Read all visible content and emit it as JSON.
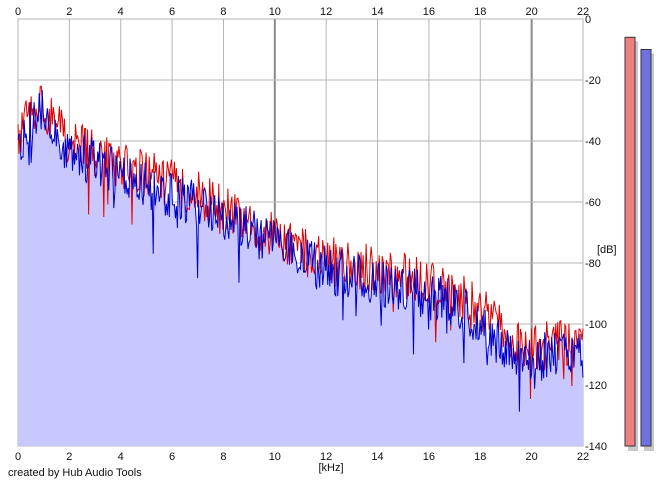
{
  "chart_data": {
    "type": "line",
    "title": "",
    "xlabel": "[kHz]",
    "ylabel": "[dB]",
    "xlim": [
      0,
      22
    ],
    "ylim": [
      -140,
      0
    ],
    "grid": true,
    "x_ticks": [
      "0",
      "2",
      "4",
      "6",
      "8",
      "10",
      "12",
      "14",
      "16",
      "18",
      "20",
      "22"
    ],
    "y_ticks": [
      "0",
      "-20",
      "-40",
      "-60",
      "-80",
      "-100",
      "-120",
      "-140"
    ],
    "series": [
      {
        "color": "#e00000",
        "x": [
          0,
          0.5,
          1,
          1.5,
          2,
          3,
          4,
          5,
          6,
          7,
          8,
          9,
          10,
          11,
          12,
          13,
          14,
          15,
          16,
          17,
          18,
          19,
          20,
          21,
          22
        ],
        "y": [
          -40,
          -31,
          -28,
          -35,
          -40,
          -44,
          -48,
          -51,
          -54,
          -57,
          -62,
          -67,
          -71,
          -76,
          -79,
          -81,
          -82,
          -84,
          -86,
          -89,
          -95,
          -104,
          -108,
          -106,
          -108
        ]
      },
      {
        "color": "#0000cc",
        "x": [
          0,
          0.5,
          1,
          1.5,
          2,
          3,
          4,
          5,
          6,
          7,
          8,
          9,
          10,
          11,
          12,
          13,
          14,
          15,
          16,
          17,
          18,
          19,
          20,
          21,
          22
        ],
        "y": [
          -44,
          -33,
          -31,
          -38,
          -43,
          -47,
          -51,
          -55,
          -58,
          -61,
          -65,
          -69,
          -74,
          -79,
          -82,
          -84,
          -86,
          -88,
          -90,
          -93,
          -99,
          -108,
          -112,
          -109,
          -111
        ]
      }
    ],
    "fill": {
      "color": "#c8c8ff",
      "series_index": 1
    },
    "level_meters": [
      {
        "color": "#f08080",
        "level_db": -6
      },
      {
        "color": "#7070e0",
        "level_db": -10
      }
    ]
  },
  "credit": "created by Hub Audio Tools"
}
